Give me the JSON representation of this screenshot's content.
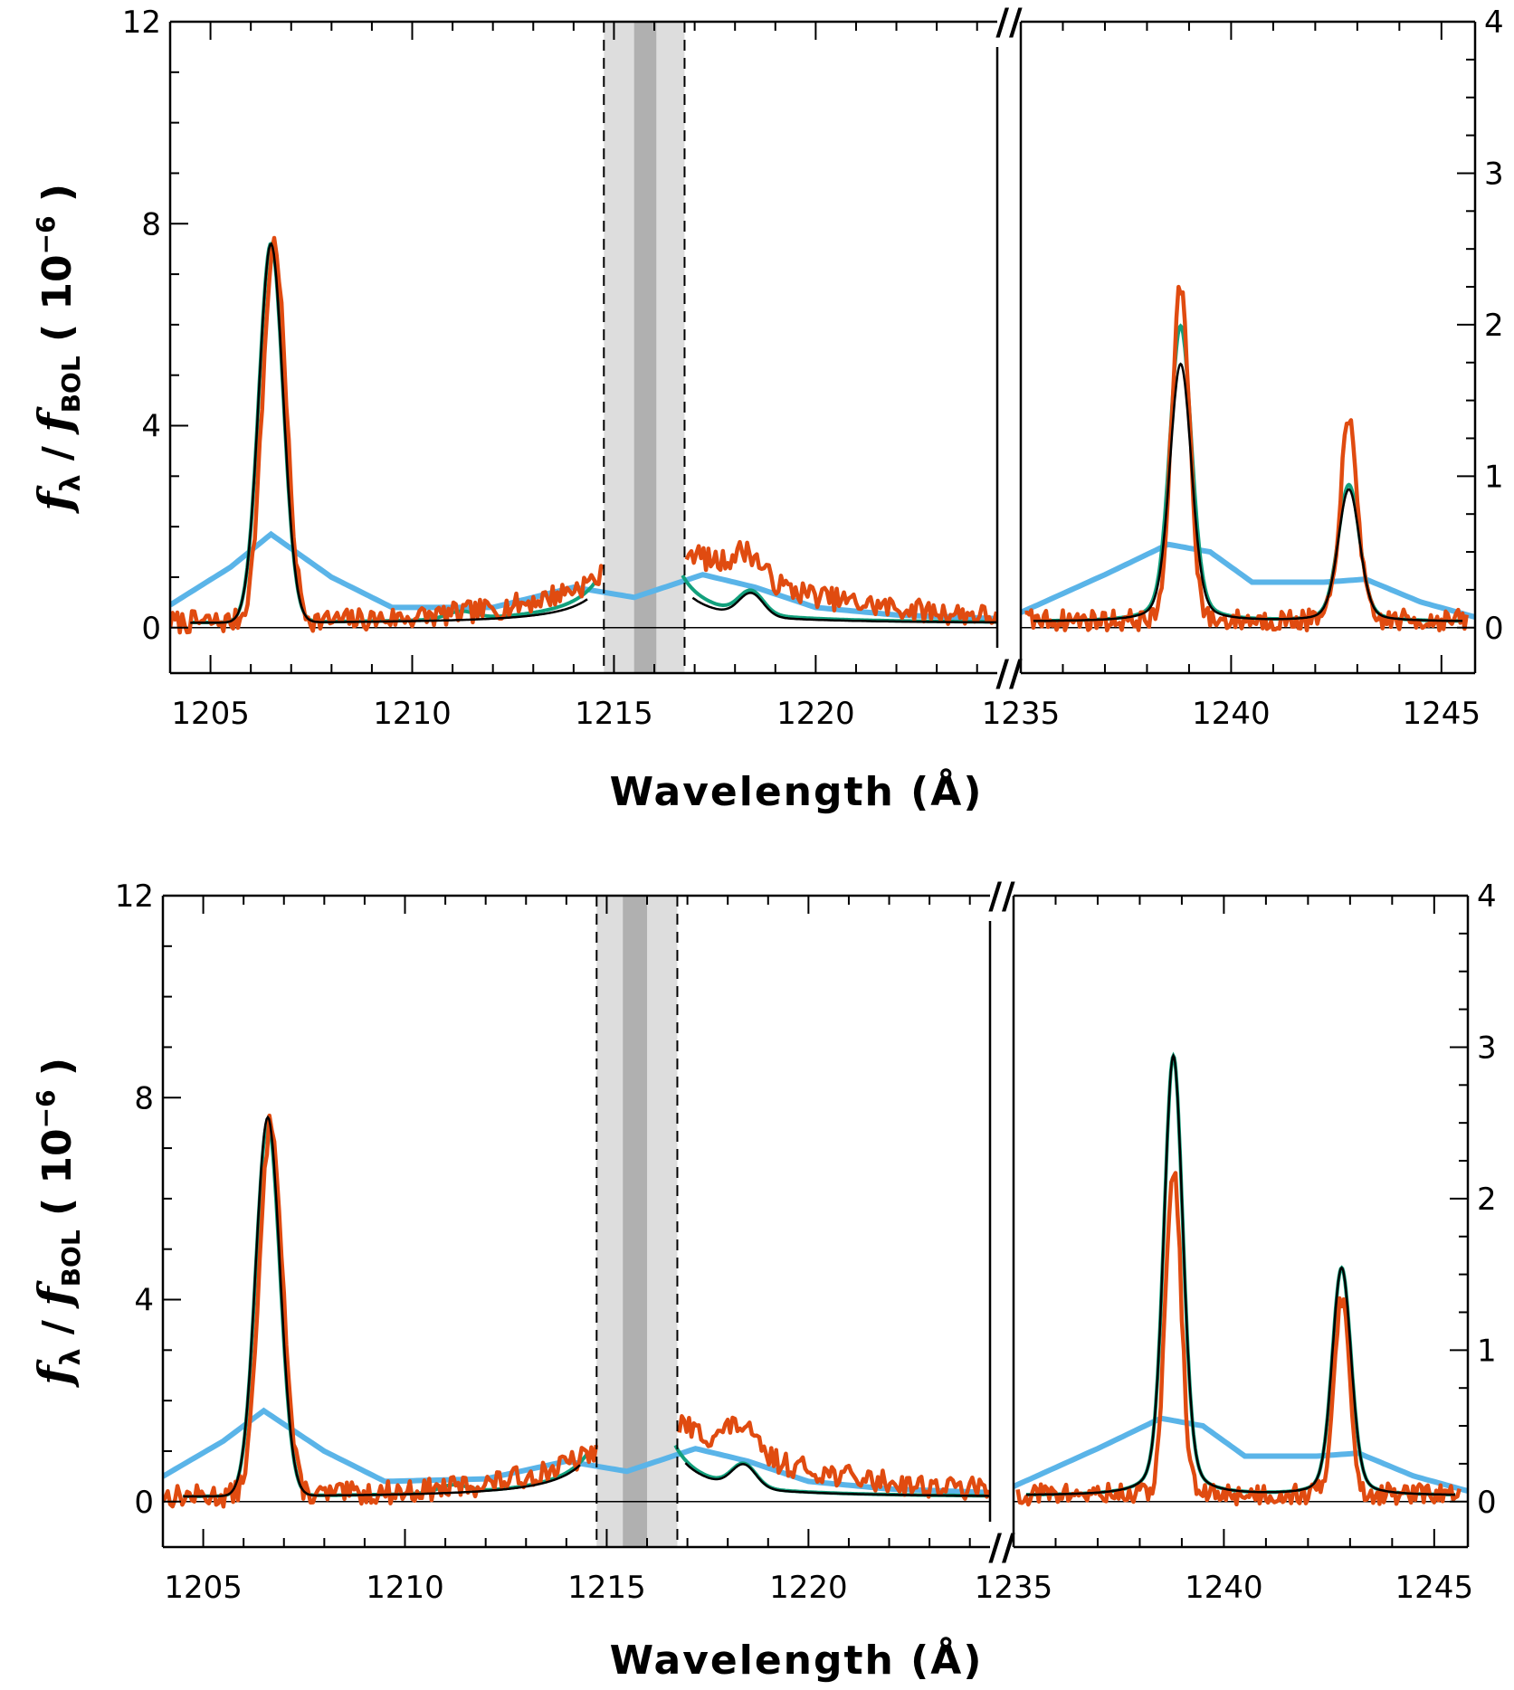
{
  "colors": {
    "model_green": "#12a07c",
    "observed_orange": "#e04b10",
    "fit_black": "#000000",
    "quiet_blue": "#5ab4e8",
    "shade_light": "#dddddd",
    "shade_dark": "#b0b0b0"
  },
  "chart_data": [
    {
      "type": "line",
      "panel": "top",
      "xlabel": "Wavelength  (Å)",
      "ylabel_prefix": "f",
      "ylabel_sub1": "λ",
      "ylabel_mid": " / ",
      "ylabel_sub2": "BOL",
      "ylabel_unit": " ( 10",
      "ylabel_exp": "−6",
      "ylabel_close": " )",
      "break_mark": "//",
      "left_axis": {
        "xlim": [
          1204,
          1224.5
        ],
        "ylim": [
          -0.9,
          12
        ],
        "xticks": [
          1205,
          1210,
          1215,
          1220
        ],
        "xtick_labels": [
          "1205",
          "1210",
          "1215",
          "1220"
        ],
        "yticks": [
          0,
          4,
          8,
          12
        ],
        "ytick_labels": [
          "0",
          "4",
          "8",
          "12"
        ]
      },
      "right_axis": {
        "xlim": [
          1235,
          1245.8
        ],
        "ylim": [
          -0.3,
          4
        ],
        "xticks": [
          1235,
          1240,
          1245
        ],
        "xtick_labels": [
          "1235",
          "1240",
          "1245"
        ],
        "yticks": [
          0,
          1,
          2,
          3,
          4
        ],
        "ytick_labels": [
          "0",
          "1",
          "2",
          "3",
          "4"
        ]
      },
      "shaded_bands": [
        {
          "from": 1214.75,
          "to": 1216.75,
          "shade": "light"
        },
        {
          "from": 1215.5,
          "to": 1216.05,
          "shade": "dark"
        }
      ],
      "dashed_lines": [
        1214.75,
        1216.75
      ],
      "components": {
        "si3_1206": {
          "center": 1206.5,
          "green_peak": 7.5,
          "black_peak": 7.5,
          "orange_peak": 7.5,
          "width": 0.3
        },
        "lya": {
          "center": 1215.67,
          "green_amp": 1.2,
          "black_amp": 0.9,
          "wing_gamma": 0.55
        },
        "lya_orange": {
          "blue_side_amp": 0.9,
          "red_side_amp": 1.3,
          "bump_1218": 0.5
        },
        "nv_1238": {
          "center": 1238.8,
          "green_peak": 1.95,
          "black_peak": 1.7,
          "orange_peak": 2.2,
          "width": 0.25
        },
        "nv_1242": {
          "center": 1242.8,
          "green_peak": 0.9,
          "black_peak": 0.87,
          "orange_peak": 1.3,
          "width": 0.25
        },
        "quiet_blue_left": [
          [
            1204,
            0.45
          ],
          [
            1205.5,
            1.2
          ],
          [
            1206.5,
            1.85
          ],
          [
            1208,
            1.0
          ],
          [
            1209.5,
            0.4
          ],
          [
            1212,
            0.4
          ],
          [
            1214,
            0.8
          ],
          [
            1215.5,
            0.6
          ],
          [
            1217.2,
            1.05
          ],
          [
            1218.5,
            0.8
          ],
          [
            1220,
            0.4
          ],
          [
            1222,
            0.25
          ],
          [
            1224.5,
            0.18
          ]
        ],
        "quiet_blue_right": [
          [
            1235,
            0.1
          ],
          [
            1237,
            0.35
          ],
          [
            1238.5,
            0.55
          ],
          [
            1239.5,
            0.5
          ],
          [
            1240.5,
            0.3
          ],
          [
            1242.2,
            0.3
          ],
          [
            1243.2,
            0.32
          ],
          [
            1244.5,
            0.17
          ],
          [
            1245.8,
            0.07
          ]
        ],
        "seed": 7
      }
    },
    {
      "type": "line",
      "panel": "bottom",
      "xlabel": "Wavelength  (Å)",
      "ylabel_prefix": "f",
      "ylabel_sub1": "λ",
      "ylabel_mid": " / ",
      "ylabel_sub2": "BOL",
      "ylabel_unit": " ( 10",
      "ylabel_exp": "−6",
      "ylabel_close": " )",
      "break_mark": "//",
      "left_axis": {
        "xlim": [
          1204,
          1224.5
        ],
        "ylim": [
          -0.9,
          12
        ],
        "xticks": [
          1205,
          1210,
          1215,
          1220
        ],
        "xtick_labels": [
          "1205",
          "1210",
          "1215",
          "1220"
        ],
        "yticks": [
          0,
          4,
          8,
          12
        ],
        "ytick_labels": [
          "0",
          "4",
          "8",
          "12"
        ]
      },
      "right_axis": {
        "xlim": [
          1235,
          1245.8
        ],
        "ylim": [
          -0.3,
          4
        ],
        "xticks": [
          1235,
          1240,
          1245
        ],
        "xtick_labels": [
          "1235",
          "1240",
          "1245"
        ],
        "yticks": [
          0,
          1,
          2,
          3,
          4
        ],
        "ytick_labels": [
          "0",
          "1",
          "2",
          "3",
          "4"
        ]
      },
      "shaded_bands": [
        {
          "from": 1214.75,
          "to": 1216.75,
          "shade": "light"
        },
        {
          "from": 1215.4,
          "to": 1216.0,
          "shade": "dark"
        }
      ],
      "dashed_lines": [
        1214.75,
        1216.75
      ],
      "components": {
        "si3_1206": {
          "center": 1206.6,
          "green_peak": 7.4,
          "black_peak": 7.5,
          "orange_peak": 7.4,
          "width": 0.3
        },
        "lya": {
          "center": 1215.67,
          "green_amp": 1.3,
          "black_amp": 1.2,
          "wing_gamma": 0.55
        },
        "lya_orange": {
          "blue_side_amp": 0.85,
          "red_side_amp": 1.3,
          "bump_1218": 0.5
        },
        "nv_1238": {
          "center": 1238.8,
          "green_peak": 2.9,
          "black_peak": 2.9,
          "orange_peak": 2.15,
          "width": 0.22
        },
        "nv_1242": {
          "center": 1242.8,
          "green_peak": 1.5,
          "black_peak": 1.5,
          "orange_peak": 1.3,
          "width": 0.22
        },
        "quiet_blue_left": [
          [
            1204,
            0.5
          ],
          [
            1205.5,
            1.2
          ],
          [
            1206.5,
            1.8
          ],
          [
            1208,
            1.0
          ],
          [
            1209.5,
            0.4
          ],
          [
            1212,
            0.45
          ],
          [
            1214,
            0.8
          ],
          [
            1215.5,
            0.6
          ],
          [
            1217.2,
            1.05
          ],
          [
            1218.5,
            0.8
          ],
          [
            1220,
            0.4
          ],
          [
            1222,
            0.25
          ],
          [
            1224.5,
            0.18
          ]
        ],
        "quiet_blue_right": [
          [
            1235,
            0.1
          ],
          [
            1237,
            0.35
          ],
          [
            1238.5,
            0.55
          ],
          [
            1239.5,
            0.5
          ],
          [
            1240.5,
            0.3
          ],
          [
            1242.2,
            0.3
          ],
          [
            1243.2,
            0.32
          ],
          [
            1244.5,
            0.17
          ],
          [
            1245.8,
            0.07
          ]
        ],
        "seed": 13
      }
    }
  ]
}
